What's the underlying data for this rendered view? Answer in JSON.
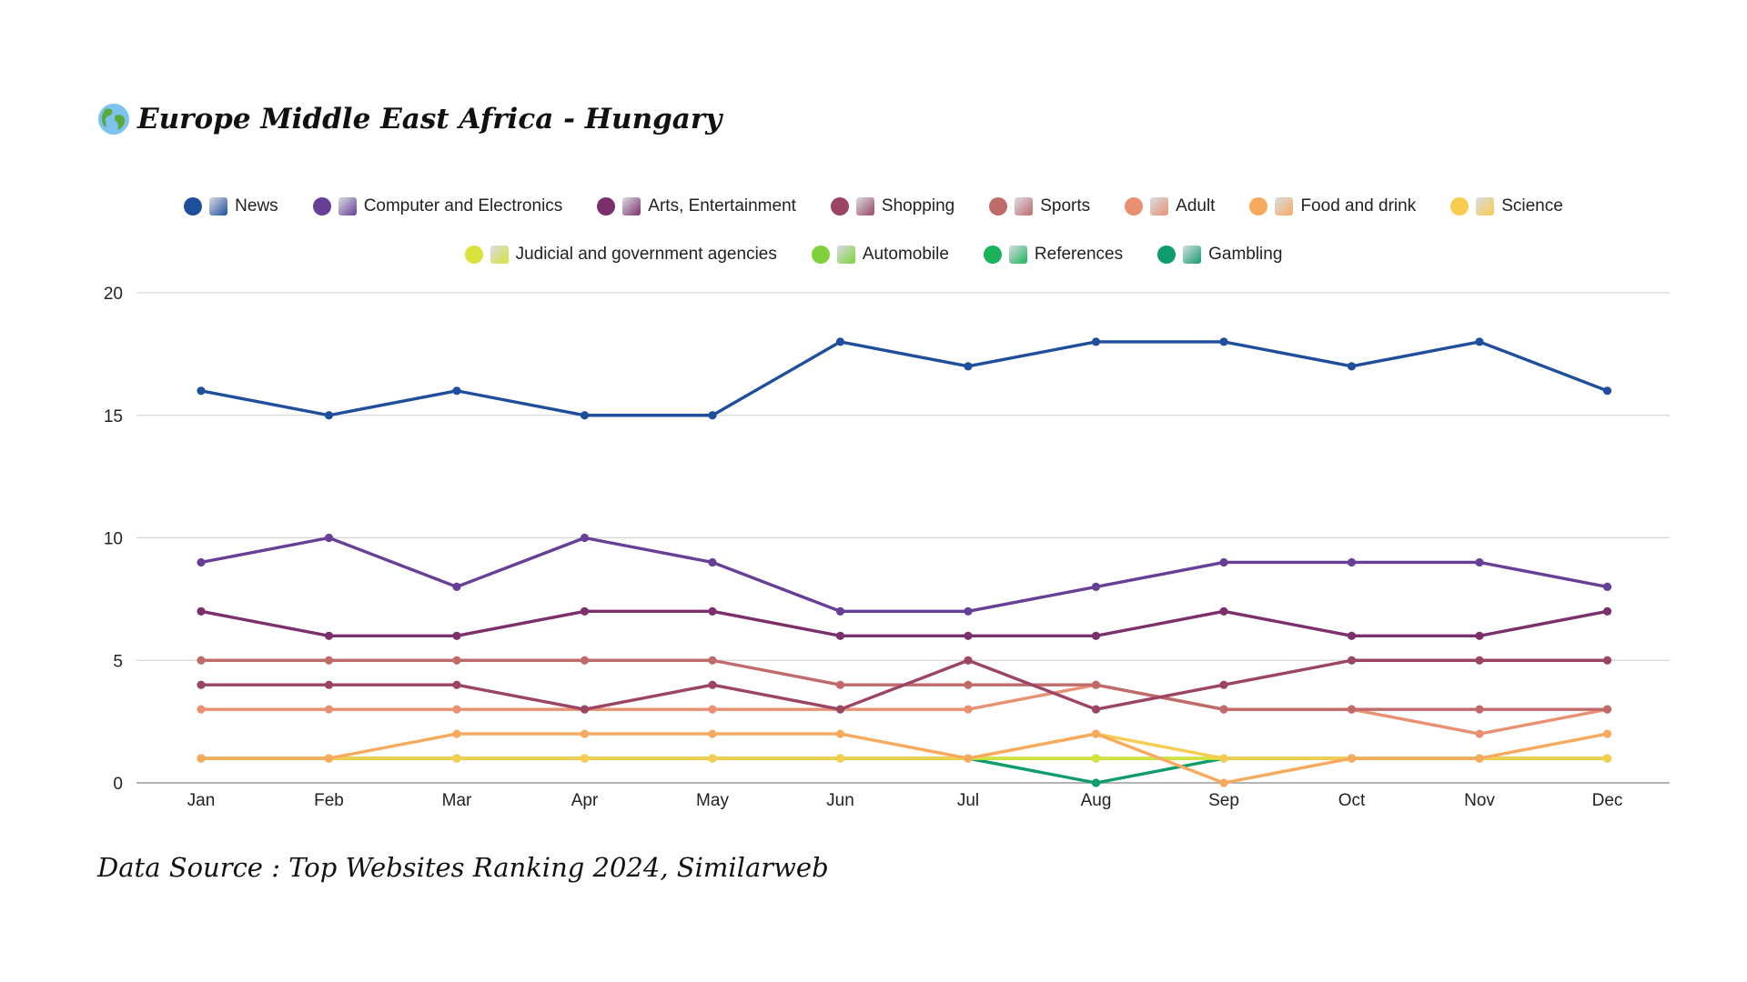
{
  "title": {
    "text": "Europe Middle East Africa - Hungary",
    "icon": "globe-icon"
  },
  "source": {
    "text": "Data Source : Top Websites Ranking 2024, Similarweb"
  },
  "chart_data": {
    "type": "line",
    "title": "Europe Middle East Africa - Hungary",
    "xlabel": "",
    "ylabel": "",
    "ylim": [
      0,
      20
    ],
    "yticks": [
      "0",
      "5",
      "10",
      "15",
      "20"
    ],
    "grid": true,
    "legend_position": "top",
    "categories": [
      "Jan",
      "Feb",
      "Mar",
      "Apr",
      "May",
      "Jun",
      "Jul",
      "Aug",
      "Sep",
      "Oct",
      "Nov",
      "Dec"
    ],
    "series": [
      {
        "name": "News",
        "icon": "newspaper-icon",
        "color": "#1f4e9c",
        "values": [
          16,
          15,
          16,
          15,
          15,
          18,
          17,
          18,
          18,
          17,
          18,
          16
        ]
      },
      {
        "name": "Computer and Electronics",
        "icon": "laptop-icon",
        "color": "#673f96",
        "values": [
          9,
          10,
          8,
          10,
          9,
          7,
          7,
          8,
          9,
          9,
          9,
          8
        ]
      },
      {
        "name": "Arts, Entertainment",
        "icon": "artist-icon",
        "color": "#7b2f6b",
        "values": [
          7,
          6,
          6,
          7,
          7,
          6,
          6,
          6,
          7,
          6,
          6,
          7
        ]
      },
      {
        "name": "Shopping",
        "icon": "cart-icon",
        "color": "#9b4563",
        "values": [
          4,
          4,
          4,
          3,
          4,
          3,
          5,
          3,
          4,
          5,
          5,
          5
        ]
      },
      {
        "name": "Sports",
        "icon": "cyclist-icon",
        "color": "#c06a6a",
        "values": [
          5,
          5,
          5,
          5,
          5,
          4,
          4,
          4,
          3,
          3,
          3,
          3
        ]
      },
      {
        "name": "Adult",
        "icon": "eighteen-icon",
        "color": "#e89071",
        "values": [
          3,
          3,
          3,
          3,
          3,
          3,
          3,
          4,
          3,
          3,
          2,
          3
        ]
      },
      {
        "name": "Food and drink",
        "icon": "bento-icon",
        "color": "#f7aa5e",
        "values": [
          1,
          1,
          2,
          2,
          2,
          2,
          1,
          2,
          0,
          1,
          1,
          2
        ]
      },
      {
        "name": "Science",
        "icon": "microscope-icon",
        "color": "#f7cc4f",
        "values": [
          1,
          1,
          1,
          1,
          1,
          1,
          1,
          2,
          1,
          1,
          1,
          1
        ]
      },
      {
        "name": "Judicial and government agencies",
        "icon": "scales-icon",
        "color": "#d8e23a",
        "values": [
          1,
          1,
          1,
          1,
          1,
          1,
          1,
          1,
          1,
          1,
          1,
          1
        ]
      },
      {
        "name": "Automobile",
        "icon": "car-icon",
        "color": "#7ed13a",
        "values": [
          1,
          1,
          1,
          1,
          1,
          1,
          1,
          1,
          1,
          1,
          1,
          1
        ]
      },
      {
        "name": "References",
        "icon": "bookmark-icon",
        "color": "#1ab35a",
        "values": [
          1,
          1,
          1,
          1,
          1,
          1,
          1,
          1,
          1,
          1,
          1,
          1
        ]
      },
      {
        "name": "Gambling",
        "icon": "slot-machine-icon",
        "color": "#0f9c6b",
        "values": [
          1,
          1,
          1,
          1,
          1,
          1,
          1,
          0,
          1,
          1,
          1,
          1
        ]
      }
    ]
  }
}
